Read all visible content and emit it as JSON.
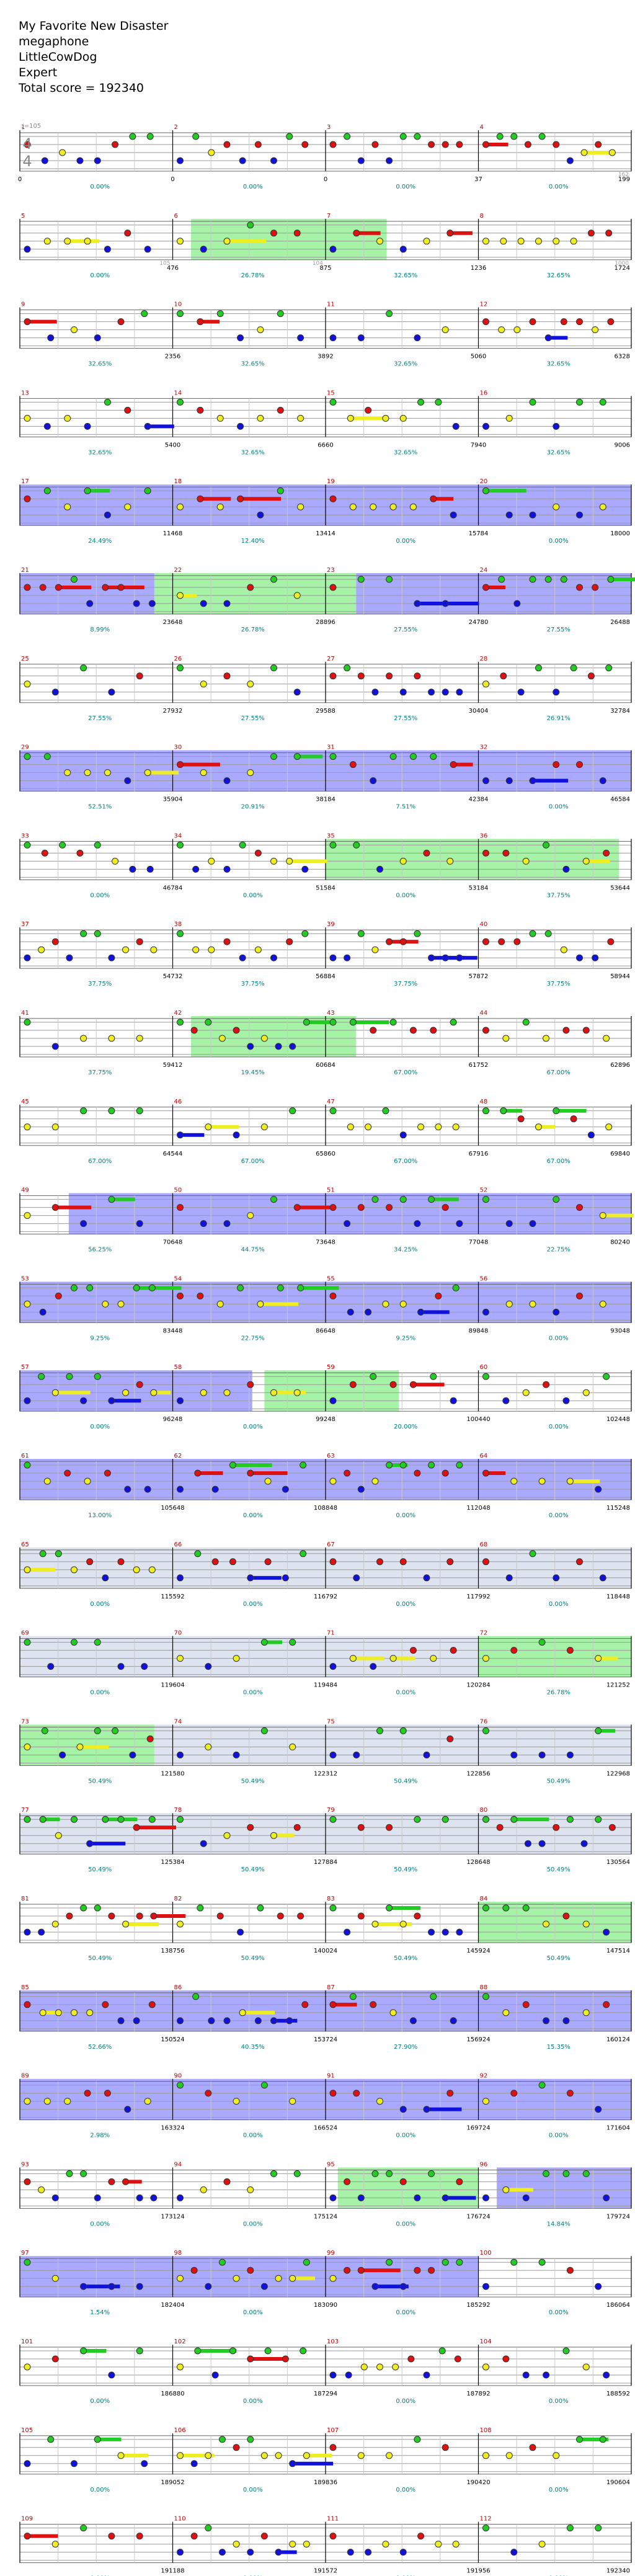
{
  "song": {
    "title": "My Favorite New Disaster",
    "band": "megaphone",
    "charter": "LittleCowDog",
    "difficulty": "Expert",
    "total_score_label": "Total score = 192340"
  },
  "tempo_label": "♩=105",
  "time_signature": {
    "top": "4",
    "bottom": "4"
  },
  "colors": {
    "green": "#22cc22",
    "red": "#dd1111",
    "yellow": "#eeee22",
    "blue": "#1111dd",
    "orange": "#ff9900",
    "sp_band": "#8c8cff",
    "solo_band": "#dde3ef",
    "od_band": "#88ee88"
  },
  "measure_rows": [
    {
      "numbers": [
        "1",
        "2",
        "3",
        "4"
      ],
      "scores": [
        "0",
        "0",
        "0",
        "37",
        "199"
      ],
      "pct": [
        "0.00%",
        "0.00%",
        "0.00%",
        "0.00%"
      ],
      "dashes": [
        "",
        "",
        "",
        "",
        "162"
      ]
    },
    {
      "numbers": [
        "5",
        "6",
        "7",
        "8"
      ],
      "scores": [
        "",
        "476",
        "875",
        "1236",
        "1724"
      ],
      "pct": [
        "0.00%",
        "26.78%",
        "32.65%",
        "32.65%"
      ],
      "dashes": [
        "",
        "105",
        "104",
        "",
        "1000"
      ]
    },
    {
      "numbers": [
        "9",
        "10",
        "11",
        "12"
      ],
      "scores": [
        "",
        "2356",
        "3892",
        "5060",
        "6328"
      ],
      "pct": [
        "32.65%",
        "32.65%",
        "32.65%",
        "32.65%"
      ],
      "dashes": [
        "",
        "",
        "",
        "",
        ""
      ]
    },
    {
      "numbers": [
        "13",
        "14",
        "15",
        "16"
      ],
      "scores": [
        "",
        "5400",
        "6660",
        "7940",
        "9006"
      ],
      "pct": [
        "32.65%",
        "32.65%",
        "32.65%",
        "32.65%"
      ],
      "dashes": [
        "",
        "",
        "",
        "",
        ""
      ]
    },
    {
      "numbers": [
        "17",
        "18",
        "19",
        "20"
      ],
      "scores": [
        "",
        "11468",
        "13414",
        "15784",
        "18000"
      ],
      "pct": [
        "24.49%",
        "12.40%",
        "0.00%",
        "0.00%"
      ],
      "dashes": [
        "",
        "",
        "",
        "",
        ""
      ]
    },
    {
      "numbers": [
        "21",
        "22",
        "23",
        "24"
      ],
      "scores": [
        "",
        "23648",
        "28896",
        "24780",
        "26488"
      ],
      "pct": [
        "8.99%",
        "26.78%",
        "27.55%",
        "27.55%"
      ],
      "dashes": [
        "",
        "",
        "",
        "",
        ""
      ]
    },
    {
      "numbers": [
        "25",
        "26",
        "27",
        "28"
      ],
      "scores": [
        "",
        "27932",
        "29588",
        "30404",
        "32784"
      ],
      "pct": [
        "27.55%",
        "27.55%",
        "27.55%",
        "26.91%"
      ],
      "dashes": [
        "",
        "",
        "",
        "",
        ""
      ]
    },
    {
      "numbers": [
        "29",
        "30",
        "31",
        "32"
      ],
      "scores": [
        "",
        "35904",
        "38184",
        "42384",
        "46584"
      ],
      "pct": [
        "52.51%",
        "20.91%",
        "7.51%",
        "0.00%"
      ],
      "dashes": [
        "",
        "",
        "",
        "",
        ""
      ]
    },
    {
      "numbers": [
        "33",
        "34",
        "35",
        "36"
      ],
      "scores": [
        "",
        "46784",
        "51584",
        "53184",
        "53644"
      ],
      "pct": [
        "0.00%",
        "0.00%",
        "0.00%",
        "37.75%"
      ],
      "dashes": [
        "",
        "",
        "",
        "",
        ""
      ]
    },
    {
      "numbers": [
        "37",
        "38",
        "39",
        "40"
      ],
      "scores": [
        "",
        "54732",
        "56884",
        "57872",
        "58944"
      ],
      "pct": [
        "37.75%",
        "37.75%",
        "37.75%",
        "37.75%"
      ],
      "dashes": [
        "",
        "",
        "",
        "",
        ""
      ]
    },
    {
      "numbers": [
        "41",
        "42",
        "43",
        "44"
      ],
      "scores": [
        "",
        "59412",
        "60684",
        "61752",
        "62896"
      ],
      "pct": [
        "37.75%",
        "19.45%",
        "67.00%",
        "67.00%"
      ],
      "dashes": [
        "",
        "",
        "",
        "",
        ""
      ]
    },
    {
      "numbers": [
        "45",
        "46",
        "47",
        "48"
      ],
      "scores": [
        "",
        "64544",
        "65860",
        "67916",
        "69840"
      ],
      "pct": [
        "67.00%",
        "67.00%",
        "67.00%",
        "67.00%"
      ],
      "dashes": [
        "",
        "",
        "",
        "",
        ""
      ]
    },
    {
      "numbers": [
        "49",
        "50",
        "51",
        "52"
      ],
      "scores": [
        "",
        "70648",
        "73648",
        "77048",
        "80240"
      ],
      "pct": [
        "56.25%",
        "44.75%",
        "34.25%",
        "22.75%"
      ],
      "dashes": [
        "",
        "",
        "",
        "",
        ""
      ]
    },
    {
      "numbers": [
        "53",
        "54",
        "55",
        "56"
      ],
      "scores": [
        "",
        "83448",
        "86648",
        "89848",
        "93048"
      ],
      "pct": [
        "9.25%",
        "22.75%",
        "9.25%",
        "0.00%"
      ],
      "dashes": [
        "",
        "",
        "",
        "",
        ""
      ]
    },
    {
      "numbers": [
        "57",
        "58",
        "59",
        "60"
      ],
      "scores": [
        "",
        "96248",
        "99248",
        "100440",
        "102448"
      ],
      "pct": [
        "0.00%",
        "0.00%",
        "20.00%",
        "0.00%"
      ],
      "dashes": [
        "",
        "",
        "",
        "",
        ""
      ]
    },
    {
      "numbers": [
        "61",
        "62",
        "63",
        "64"
      ],
      "scores": [
        "",
        "105648",
        "108848",
        "112048",
        "115248"
      ],
      "pct": [
        "13.00%",
        "0.00%",
        "0.00%",
        "0.00%"
      ],
      "dashes": [
        "",
        "",
        "",
        "",
        ""
      ]
    },
    {
      "numbers": [
        "65",
        "66",
        "67",
        "68"
      ],
      "scores": [
        "",
        "115592",
        "116792",
        "117992",
        "118448"
      ],
      "pct": [
        "0.00%",
        "0.00%",
        "0.00%",
        "0.00%"
      ],
      "dashes": [
        "",
        "",
        "",
        "",
        ""
      ]
    },
    {
      "numbers": [
        "69",
        "70",
        "71",
        "72"
      ],
      "scores": [
        "",
        "119604",
        "119484",
        "120284",
        "121252"
      ],
      "pct": [
        "0.00%",
        "0.00%",
        "0.00%",
        "26.78%"
      ],
      "dashes": [
        "",
        "",
        "",
        "",
        ""
      ]
    },
    {
      "numbers": [
        "73",
        "74",
        "75",
        "76"
      ],
      "scores": [
        "",
        "121580",
        "122312",
        "122856",
        "122968"
      ],
      "pct": [
        "50.49%",
        "50.49%",
        "50.49%",
        "50.49%"
      ],
      "dashes": [
        "",
        "",
        "",
        "",
        ""
      ]
    },
    {
      "numbers": [
        "77",
        "78",
        "79",
        "80"
      ],
      "scores": [
        "",
        "125384",
        "127884",
        "128648",
        "130564"
      ],
      "pct": [
        "50.49%",
        "50.49%",
        "50.49%",
        "50.49%"
      ],
      "dashes": [
        "",
        "",
        "",
        "",
        ""
      ]
    },
    {
      "numbers": [
        "81",
        "82",
        "83",
        "84"
      ],
      "scores": [
        "",
        "138756",
        "140024",
        "145924",
        "147514"
      ],
      "pct": [
        "50.49%",
        "50.49%",
        "50.49%",
        "50.49%"
      ],
      "dashes": [
        "",
        "",
        "",
        "",
        ""
      ]
    },
    {
      "numbers": [
        "85",
        "86",
        "87",
        "88"
      ],
      "scores": [
        "",
        "150524",
        "153724",
        "156924",
        "160124"
      ],
      "pct": [
        "52.66%",
        "40.35%",
        "27.90%",
        "15.35%"
      ],
      "dashes": [
        "",
        "",
        "",
        "",
        ""
      ]
    },
    {
      "numbers": [
        "89",
        "90",
        "91",
        "92"
      ],
      "scores": [
        "",
        "163324",
        "166524",
        "169724",
        "171604"
      ],
      "pct": [
        "2.98%",
        "0.00%",
        "0.00%",
        "0.00%"
      ],
      "dashes": [
        "",
        "",
        "",
        "",
        ""
      ]
    },
    {
      "numbers": [
        "93",
        "94",
        "95",
        "96"
      ],
      "scores": [
        "",
        "173124",
        "175124",
        "176724",
        "179724"
      ],
      "pct": [
        "0.00%",
        "0.00%",
        "0.00%",
        "14.84%"
      ],
      "dashes": [
        "",
        "",
        "",
        "",
        ""
      ]
    },
    {
      "numbers": [
        "97",
        "98",
        "99",
        "100"
      ],
      "scores": [
        "",
        "182404",
        "183090",
        "185292",
        "186064"
      ],
      "pct": [
        "1.54%",
        "0.00%",
        "0.00%",
        "0.00%"
      ],
      "dashes": [
        "",
        "",
        "",
        "",
        ""
      ]
    },
    {
      "numbers": [
        "101",
        "102",
        "103",
        "104"
      ],
      "scores": [
        "",
        "186880",
        "187294",
        "187892",
        "188592"
      ],
      "pct": [
        "0.00%",
        "0.00%",
        "0.00%",
        "0.00%"
      ],
      "dashes": [
        "",
        "",
        "",
        "",
        ""
      ]
    },
    {
      "numbers": [
        "105",
        "106",
        "107",
        "108"
      ],
      "scores": [
        "",
        "189052",
        "189836",
        "190420",
        "190604"
      ],
      "pct": [
        "0.00%",
        "0.00%",
        "0.00%",
        "0.00%"
      ],
      "dashes": [
        "",
        "",
        "",
        "",
        ""
      ]
    },
    {
      "numbers": [
        "109",
        "110",
        "111",
        "112"
      ],
      "scores": [
        "",
        "191188",
        "191572",
        "191956",
        "192340"
      ],
      "pct": [
        "0.00%",
        "0.00%",
        "0.00%",
        "0.00%"
      ],
      "dashes": [
        "",
        "",
        "",
        "",
        ""
      ]
    }
  ]
}
